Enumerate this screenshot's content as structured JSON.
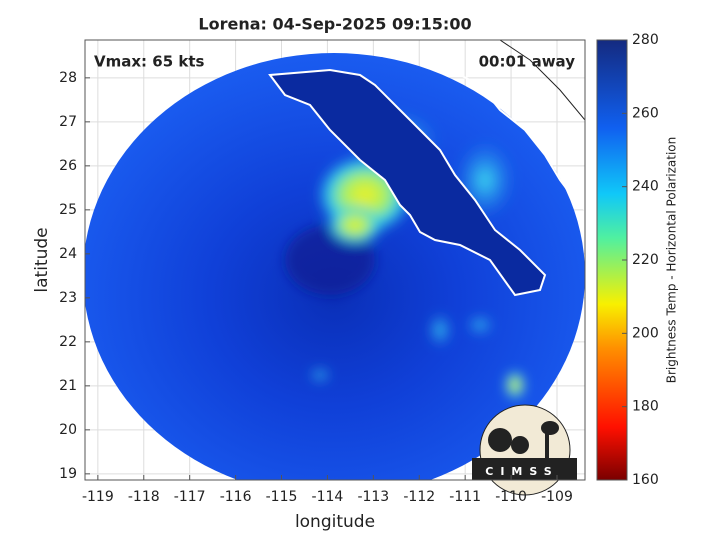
{
  "chart_data": {
    "type": "map",
    "title": "Lorena: 04-Sep-2025 09:15:00",
    "annotations": [
      "Vmax: 65 kts",
      "00:01 away"
    ],
    "x_label": "longitude",
    "y_label": "latitude",
    "xlim": [
      -119.28,
      -108.39
    ],
    "xticks": [
      -119,
      -118,
      -117,
      -116,
      -115,
      -114,
      -113,
      -112,
      -111,
      -110,
      -109
    ],
    "ylim": [
      18.86,
      28.86
    ],
    "yticks": [
      19,
      20,
      21,
      22,
      23,
      24,
      25,
      26,
      27,
      28
    ],
    "grid": true,
    "colorbar": {
      "label": "Brightness Temp - Horizontal Polarization",
      "lim": [
        160,
        280
      ],
      "ticks": [
        160,
        180,
        200,
        220,
        240,
        260,
        280
      ]
    },
    "logo_text": "CIMSS"
  }
}
